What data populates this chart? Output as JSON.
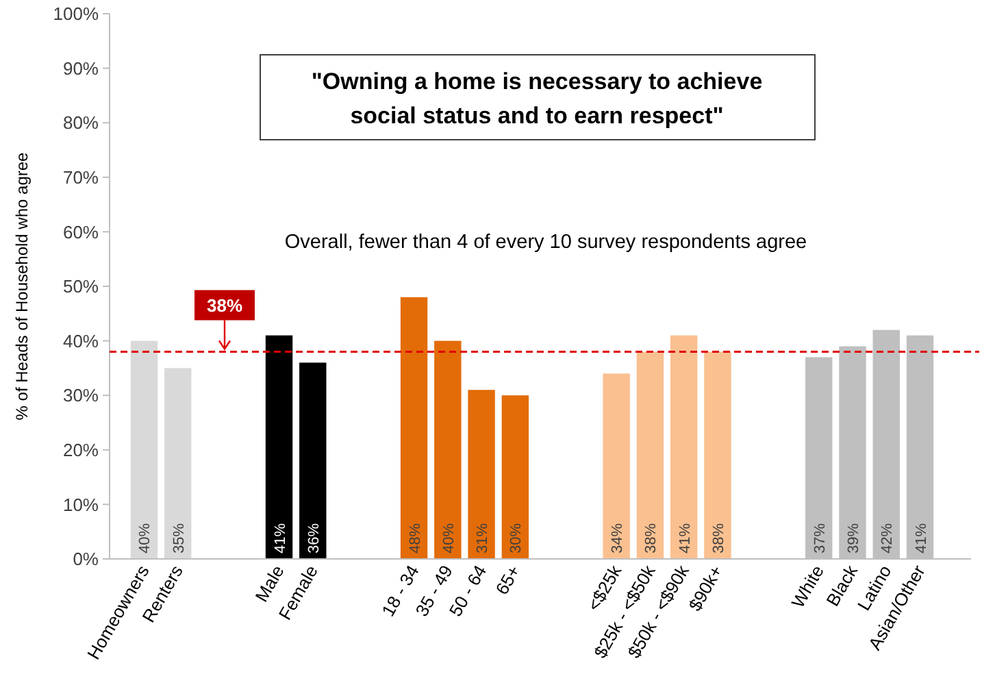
{
  "chart_data": {
    "type": "bar",
    "title": "\"Owning a home is necessary to achieve social status and to earn respect\"",
    "annotations": [
      "Overall, fewer than 4 of every 10 survey respondents agree"
    ],
    "ylabel": "% of Heads of Household who agree",
    "categories": [
      "Homeowners",
      "Renters",
      null,
      null,
      "Male",
      "Female",
      null,
      null,
      "18 - 34",
      "35 - 49",
      "50 - 64",
      "65+",
      null,
      null,
      "<$25k",
      "$25k - <$50k",
      "$50k - <$90k",
      "$90k+",
      null,
      null,
      "White",
      "Black",
      "Latino",
      "Asian/Other"
    ],
    "values": [
      40,
      35,
      null,
      null,
      41,
      36,
      null,
      null,
      48,
      40,
      31,
      30,
      null,
      null,
      34,
      38,
      41,
      38,
      null,
      null,
      37,
      39,
      42,
      41
    ],
    "colors": [
      "#d9d9d9",
      "#d9d9d9",
      null,
      null,
      "#000000",
      "#000000",
      null,
      null,
      "#e36c09",
      "#e36c09",
      "#e36c09",
      "#e36c09",
      null,
      null,
      "#fac090",
      "#fac090",
      "#fac090",
      "#fac090",
      null,
      null,
      "#bfbfbf",
      "#bfbfbf",
      "#bfbfbf",
      "#bfbfbf"
    ],
    "ylim": [
      0,
      100
    ],
    "yticks": [
      {
        "value": 0,
        "label": "0%"
      },
      {
        "value": 10,
        "label": "10%"
      },
      {
        "value": 20,
        "label": "20%"
      },
      {
        "value": 30,
        "label": "30%"
      },
      {
        "value": 40,
        "label": "40%"
      },
      {
        "value": 50,
        "label": "50%"
      },
      {
        "value": 60,
        "label": "60%"
      },
      {
        "value": 70,
        "label": "70%"
      },
      {
        "value": 80,
        "label": "80%"
      },
      {
        "value": 90,
        "label": "90%"
      },
      {
        "value": 100,
        "label": "100%"
      }
    ],
    "value_labels": [
      "40%",
      "35%",
      null,
      null,
      "41%",
      "36%",
      null,
      null,
      "48%",
      "40%",
      "31%",
      "30%",
      null,
      null,
      "34%",
      "38%",
      "41%",
      "38%",
      null,
      null,
      "37%",
      "39%",
      "42%",
      "41%"
    ],
    "ref_lines": [
      {
        "axis": "y",
        "value": 38,
        "label": "38%",
        "color": "#e00000",
        "line_style": "dashed"
      }
    ]
  }
}
